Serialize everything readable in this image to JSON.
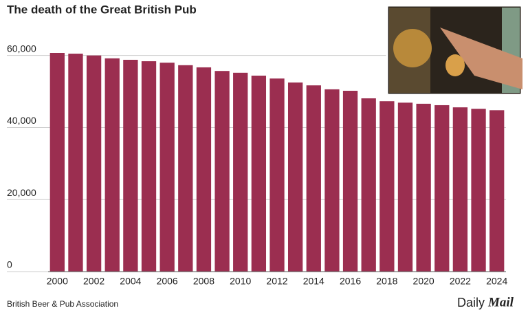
{
  "chart_data": {
    "type": "bar",
    "title": "The death of the Great British Pub",
    "categories": [
      "2000",
      null,
      "2002",
      null,
      "2004",
      null,
      "2006",
      null,
      "2008",
      null,
      "2010",
      null,
      "2012",
      null,
      "2014",
      null,
      "2016",
      null,
      "2018",
      null,
      "2020",
      null,
      "2022",
      null,
      "2024"
    ],
    "values": [
      60700,
      60500,
      60000,
      59200,
      58800,
      58400,
      58000,
      57300,
      56700,
      55700,
      55200,
      54400,
      53600,
      52500,
      51700,
      50600,
      50200,
      48100,
      47300,
      46900,
      46600,
      46200,
      45600,
      45200,
      44800
    ],
    "color": "#9b2e50",
    "ylim": [
      0,
      60700
    ],
    "yticks": [
      0,
      {
        "value": 20000,
        "label": "20,000"
      },
      {
        "value": 40000,
        "label": "40,000"
      },
      {
        "value": 60000,
        "label": "60,000"
      }
    ],
    "grid": true,
    "source": "British Beer & Pub Association",
    "logo": [
      "Daily",
      "Mail"
    ]
  }
}
